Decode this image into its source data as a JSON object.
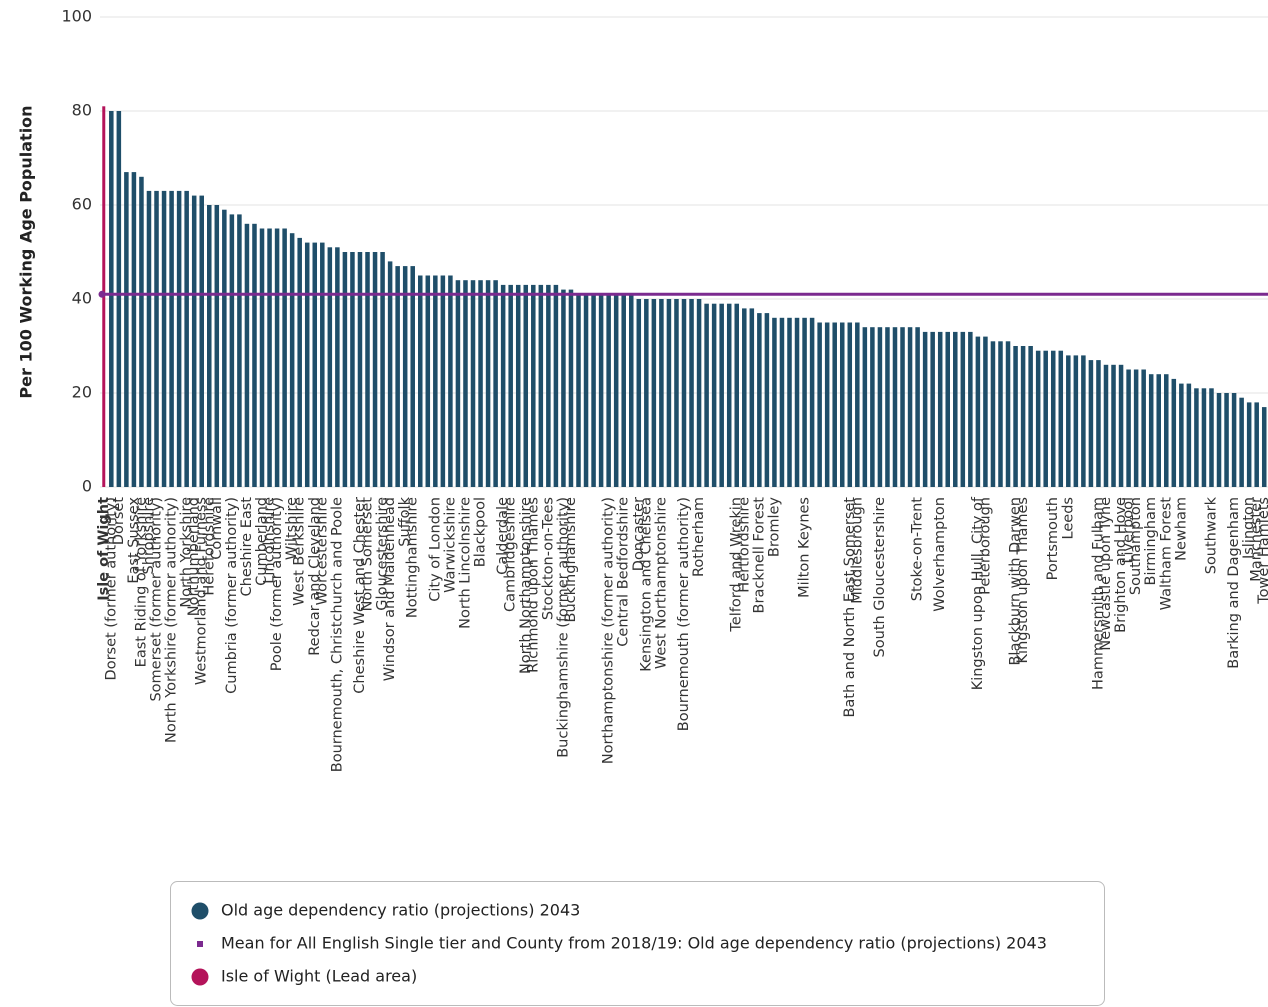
{
  "chart_data": {
    "type": "bar",
    "y_label": "Per 100 Working Age Population",
    "ylim": [
      0,
      100
    ],
    "yticks": [
      0,
      20,
      40,
      60,
      80,
      100
    ],
    "grid": true,
    "legend_position": "bottom",
    "categories": [
      "Isle of Wight",
      "Dorset (former authority)",
      "Dorset",
      null,
      "East Sussex",
      "East Riding of Yorkshire",
      "Shropshire",
      "Somerset (former authority)",
      null,
      "North Yorkshire (former authority)",
      null,
      "North Yorkshire",
      "Northumberland",
      "Westmorland and Furness",
      "Herefordshire",
      "Cornwall",
      null,
      "Cumbria (former authority)",
      null,
      "Cheshire East",
      null,
      "Cumberland",
      "Lincolnshire",
      "Poole (former authority)",
      null,
      "Wiltshire",
      "West Berkshire",
      null,
      "Redcar and Cleveland",
      "Worcestershire",
      null,
      "Bournemouth, Christchurch and Poole",
      null,
      null,
      "Cheshire West and Chester",
      "North Somerset",
      null,
      "Gloucestershire",
      "Windsor and Maidenhead",
      null,
      "Suffolk",
      "Nottinghamshire",
      null,
      null,
      "City of London",
      null,
      "Warwickshire",
      null,
      "North Lincolnshire",
      null,
      "Blackpool",
      null,
      null,
      "Calderdale",
      "Cambridgeshire",
      null,
      "North Northamptonshire",
      "Richmond upon Thames",
      null,
      "Stockton-on-Tees",
      null,
      "Buckinghamshire (former authority)",
      "Buckinghamshire",
      null,
      null,
      null,
      null,
      "Northamptonshire (former authority)",
      null,
      "Central Bedfordshire",
      null,
      "Doncaster",
      "Kensington and Chelsea",
      null,
      "West Northamptonshire",
      null,
      null,
      "Bournemouth (former authority)",
      null,
      "Rotherham",
      null,
      null,
      null,
      null,
      "Telford and Wrekin",
      "Hertfordshire",
      null,
      "Bracknell Forest",
      null,
      "Bromley",
      null,
      null,
      null,
      "Milton Keynes",
      null,
      null,
      null,
      null,
      null,
      "Bath and North East Somerset",
      "Middlesbrough",
      null,
      null,
      "South Gloucestershire",
      null,
      null,
      null,
      null,
      "Stoke-on-Trent",
      null,
      null,
      "Wolverhampton",
      null,
      null,
      null,
      null,
      "Kingston upon Hull, City of",
      "Peterborough",
      null,
      null,
      null,
      "Blackburn with Darwen",
      "Kingston upon Thames",
      null,
      null,
      null,
      "Portsmouth",
      null,
      "Leeds",
      null,
      null,
      null,
      "Hammersmith and Fulham",
      "Newcastle upon Tyne",
      null,
      "Brighton and Hove",
      "Liverpool",
      "Southampton",
      null,
      "Birmingham",
      null,
      "Waltham Forest",
      null,
      "Newham",
      null,
      null,
      null,
      "Southwark",
      null,
      null,
      "Barking and Dagenham",
      null,
      "Islington",
      "Manchester",
      "Tower Hamlets"
    ],
    "series": [
      {
        "name": "Old age dependency ratio (projections) 2043",
        "color": "#1f4e69",
        "values": [
          81,
          80,
          80,
          67,
          67,
          66,
          63,
          63,
          63,
          63,
          63,
          63,
          62,
          62,
          60,
          60,
          59,
          58,
          58,
          56,
          56,
          55,
          55,
          55,
          55,
          54,
          53,
          52,
          52,
          52,
          51,
          51,
          50,
          50,
          50,
          50,
          50,
          50,
          48,
          47,
          47,
          47,
          45,
          45,
          45,
          45,
          45,
          44,
          44,
          44,
          44,
          44,
          44,
          43,
          43,
          43,
          43,
          43,
          43,
          43,
          43,
          42,
          42,
          41,
          41,
          41,
          41,
          41,
          41,
          41,
          41,
          40,
          40,
          40,
          40,
          40,
          40,
          40,
          40,
          40,
          39,
          39,
          39,
          39,
          39,
          38,
          38,
          37,
          37,
          36,
          36,
          36,
          36,
          36,
          36,
          35,
          35,
          35,
          35,
          35,
          35,
          34,
          34,
          34,
          34,
          34,
          34,
          34,
          34,
          33,
          33,
          33,
          33,
          33,
          33,
          33,
          32,
          32,
          31,
          31,
          31,
          30,
          30,
          30,
          29,
          29,
          29,
          29,
          28,
          28,
          28,
          27,
          27,
          26,
          26,
          26,
          25,
          25,
          25,
          24,
          24,
          24,
          23,
          22,
          22,
          21,
          21,
          21,
          20,
          20,
          20,
          19,
          18,
          18,
          17
        ]
      }
    ],
    "mean": {
      "name": "Mean for All English Single tier and County from 2018/19: Old age dependency ratio (projections) 2043",
      "value": 41,
      "color": "#7b2a8f"
    },
    "lead": {
      "name": "Isle of Wight (Lead area)",
      "color": "#b4135a"
    }
  }
}
